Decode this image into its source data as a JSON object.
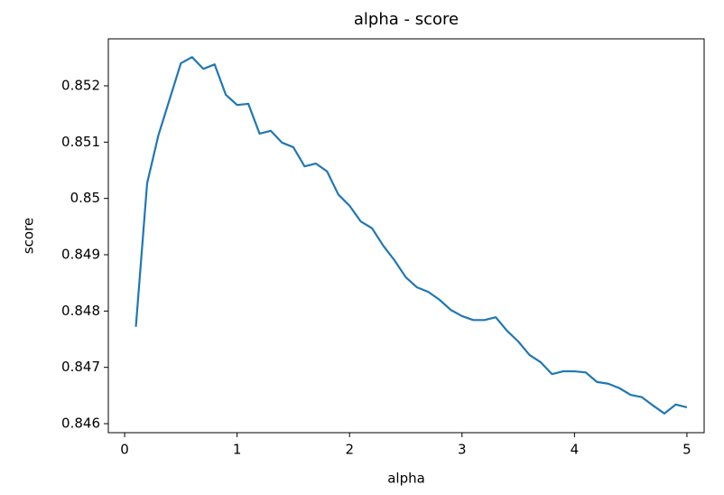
{
  "chart_data": {
    "type": "line",
    "title": "alpha - score",
    "xlabel": "alpha",
    "ylabel": "score",
    "x": [
      0.1,
      0.2,
      0.3,
      0.4,
      0.5,
      0.6,
      0.7,
      0.8,
      0.9,
      1.0,
      1.1,
      1.2,
      1.3,
      1.4,
      1.5,
      1.6,
      1.7,
      1.8,
      1.9,
      2.0,
      2.1,
      2.2,
      2.3,
      2.4,
      2.5,
      2.6,
      2.7,
      2.8,
      2.9,
      3.0,
      3.1,
      3.2,
      3.3,
      3.4,
      3.5,
      3.6,
      3.7,
      3.8,
      3.9,
      4.0,
      4.1,
      4.2,
      4.3,
      4.4,
      4.5,
      4.6,
      4.7,
      4.8,
      4.9,
      5.0
    ],
    "series": [
      {
        "name": "score",
        "color": "#1f77b4",
        "values": [
          0.84772,
          0.85027,
          0.85112,
          0.85176,
          0.8524,
          0.85251,
          0.8523,
          0.85238,
          0.85184,
          0.85166,
          0.85168,
          0.85115,
          0.8512,
          0.85099,
          0.85091,
          0.85057,
          0.85062,
          0.85048,
          0.85007,
          0.84987,
          0.84959,
          0.84947,
          0.84916,
          0.8489,
          0.8486,
          0.84842,
          0.84834,
          0.8482,
          0.84802,
          0.84791,
          0.84784,
          0.84784,
          0.84789,
          0.84765,
          0.84746,
          0.84722,
          0.84709,
          0.84688,
          0.84693,
          0.84693,
          0.84691,
          0.84674,
          0.84671,
          0.84663,
          0.84651,
          0.84647,
          0.84632,
          0.84618,
          0.84634,
          0.84629
        ]
      }
    ],
    "xlim": [
      -0.145,
      5.153
    ],
    "ylim": [
      0.84584,
      0.852834
    ],
    "xticks": [
      0,
      1,
      2,
      3,
      4,
      5
    ],
    "yticks": [
      0.846,
      0.847,
      0.848,
      0.849,
      0.85,
      {
        "value": 0.851,
        "label": "0.851"
      },
      0.852
    ],
    "grid": false
  }
}
